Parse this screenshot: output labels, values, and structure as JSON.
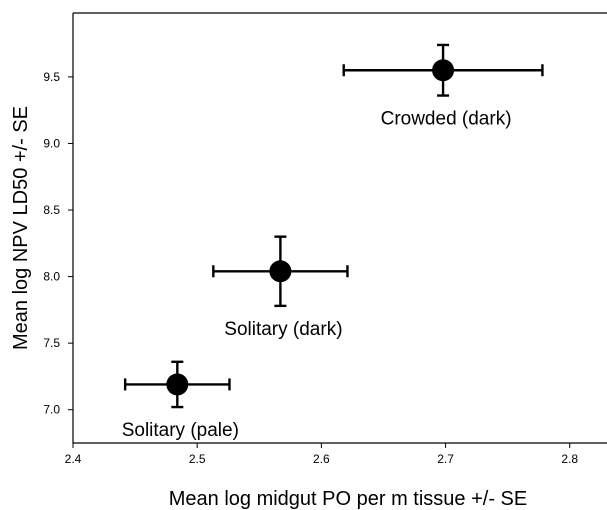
{
  "chart_data": {
    "type": "scatter",
    "title": "",
    "xlabel": "Mean log midgut PO per m tissue +/- SE",
    "ylabel": "Mean log NPV LD50 +/- SE",
    "xlim": [
      2.4,
      2.83
    ],
    "ylim": [
      6.75,
      9.98
    ],
    "x_ticks": [
      2.4,
      2.5,
      2.6,
      2.7,
      2.8
    ],
    "x_tick_labels": [
      "2.4",
      "2.5",
      "2.6",
      "2.7",
      "2.8"
    ],
    "y_ticks": [
      7.0,
      7.5,
      8.0,
      8.5,
      9.0,
      9.5
    ],
    "y_tick_labels": [
      "7.0",
      "7.5",
      "8.0",
      "8.5",
      "9.0",
      "9.5"
    ],
    "grid": false,
    "points": [
      {
        "label": "Crowded (dark)",
        "x": 2.698,
        "y": 9.55,
        "x_err": 0.08,
        "y_err": 0.19
      },
      {
        "label": "Solitary (dark)",
        "x": 2.567,
        "y": 8.04,
        "x_err": 0.054,
        "y_err": 0.26
      },
      {
        "label": "Solitary (pale)",
        "x": 2.484,
        "y": 7.19,
        "x_err": 0.042,
        "y_err": 0.17
      }
    ]
  }
}
